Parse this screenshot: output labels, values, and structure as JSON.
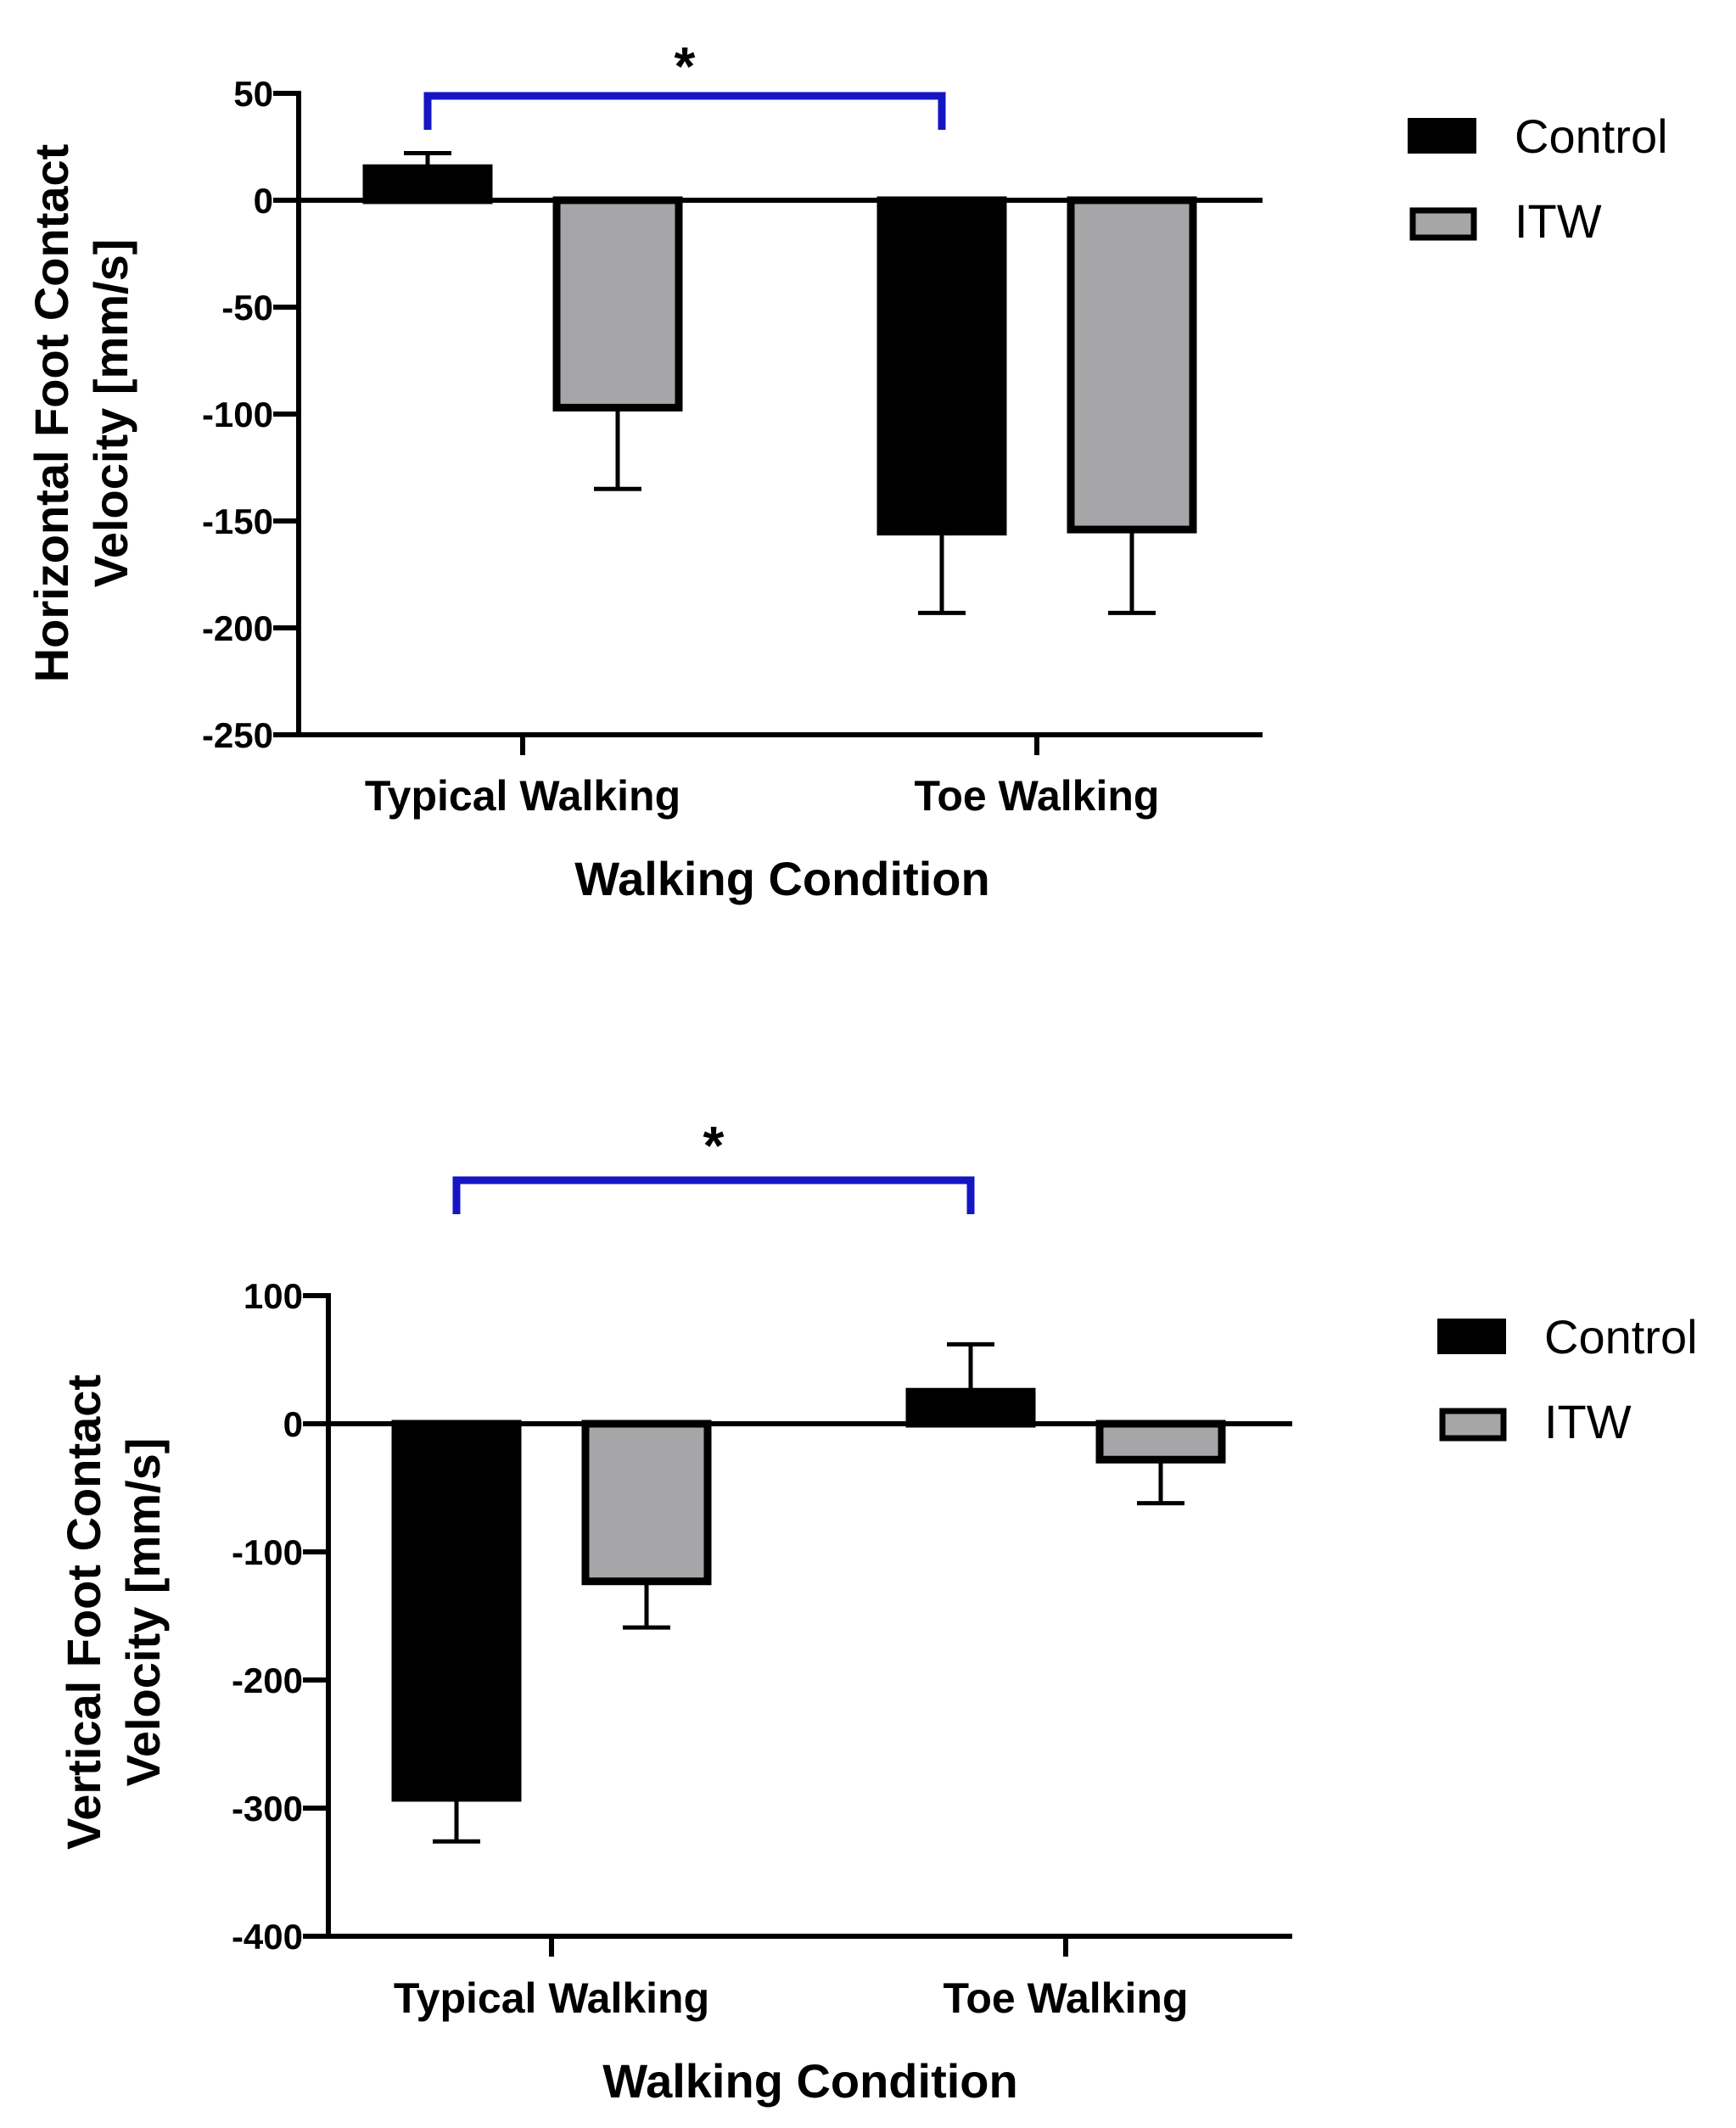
{
  "chart_data": [
    {
      "type": "bar",
      "title": "",
      "categories": [
        "Typical Walking",
        "Toe Walking"
      ],
      "xlabel": "Walking Condition",
      "ylabel_lines": [
        "Horizontal Foot Contact",
        "Velocity [mm/s]"
      ],
      "ylim": [
        -250,
        50
      ],
      "yticks": [
        50,
        0,
        -50,
        -100,
        -150,
        -200,
        -250
      ],
      "series": [
        {
          "name": "Control",
          "color": "#000000",
          "values": [
            15,
            -155
          ],
          "errors": [
            7,
            38
          ]
        },
        {
          "name": "ITW",
          "color": "#a6a6a8",
          "values": [
            -97,
            -154
          ],
          "errors": [
            38,
            39
          ]
        }
      ],
      "significance": {
        "label": "*",
        "color": "#1515c4",
        "from_category": 0,
        "to_category": 1,
        "series_index": 0
      },
      "legend": {
        "position": "top-right"
      }
    },
    {
      "type": "bar",
      "title": "",
      "categories": [
        "Typical Walking",
        "Toe Walking"
      ],
      "xlabel": "Walking Condition",
      "ylabel_lines": [
        "Vertical Foot Contact",
        "Velocity [mm/s]"
      ],
      "ylim": [
        -400,
        100
      ],
      "yticks": [
        100,
        0,
        -100,
        -200,
        -300,
        -400
      ],
      "series": [
        {
          "name": "Control",
          "color": "#000000",
          "values": [
            -292,
            25
          ],
          "errors": [
            34,
            37
          ]
        },
        {
          "name": "ITW",
          "color": "#a6a6a8",
          "values": [
            -123,
            -28
          ],
          "errors": [
            36,
            34
          ]
        }
      ],
      "significance": {
        "label": "*",
        "color": "#1515c4",
        "from_category": 0,
        "to_category": 1,
        "series_index": 0
      },
      "legend": {
        "position": "top-right"
      }
    }
  ]
}
